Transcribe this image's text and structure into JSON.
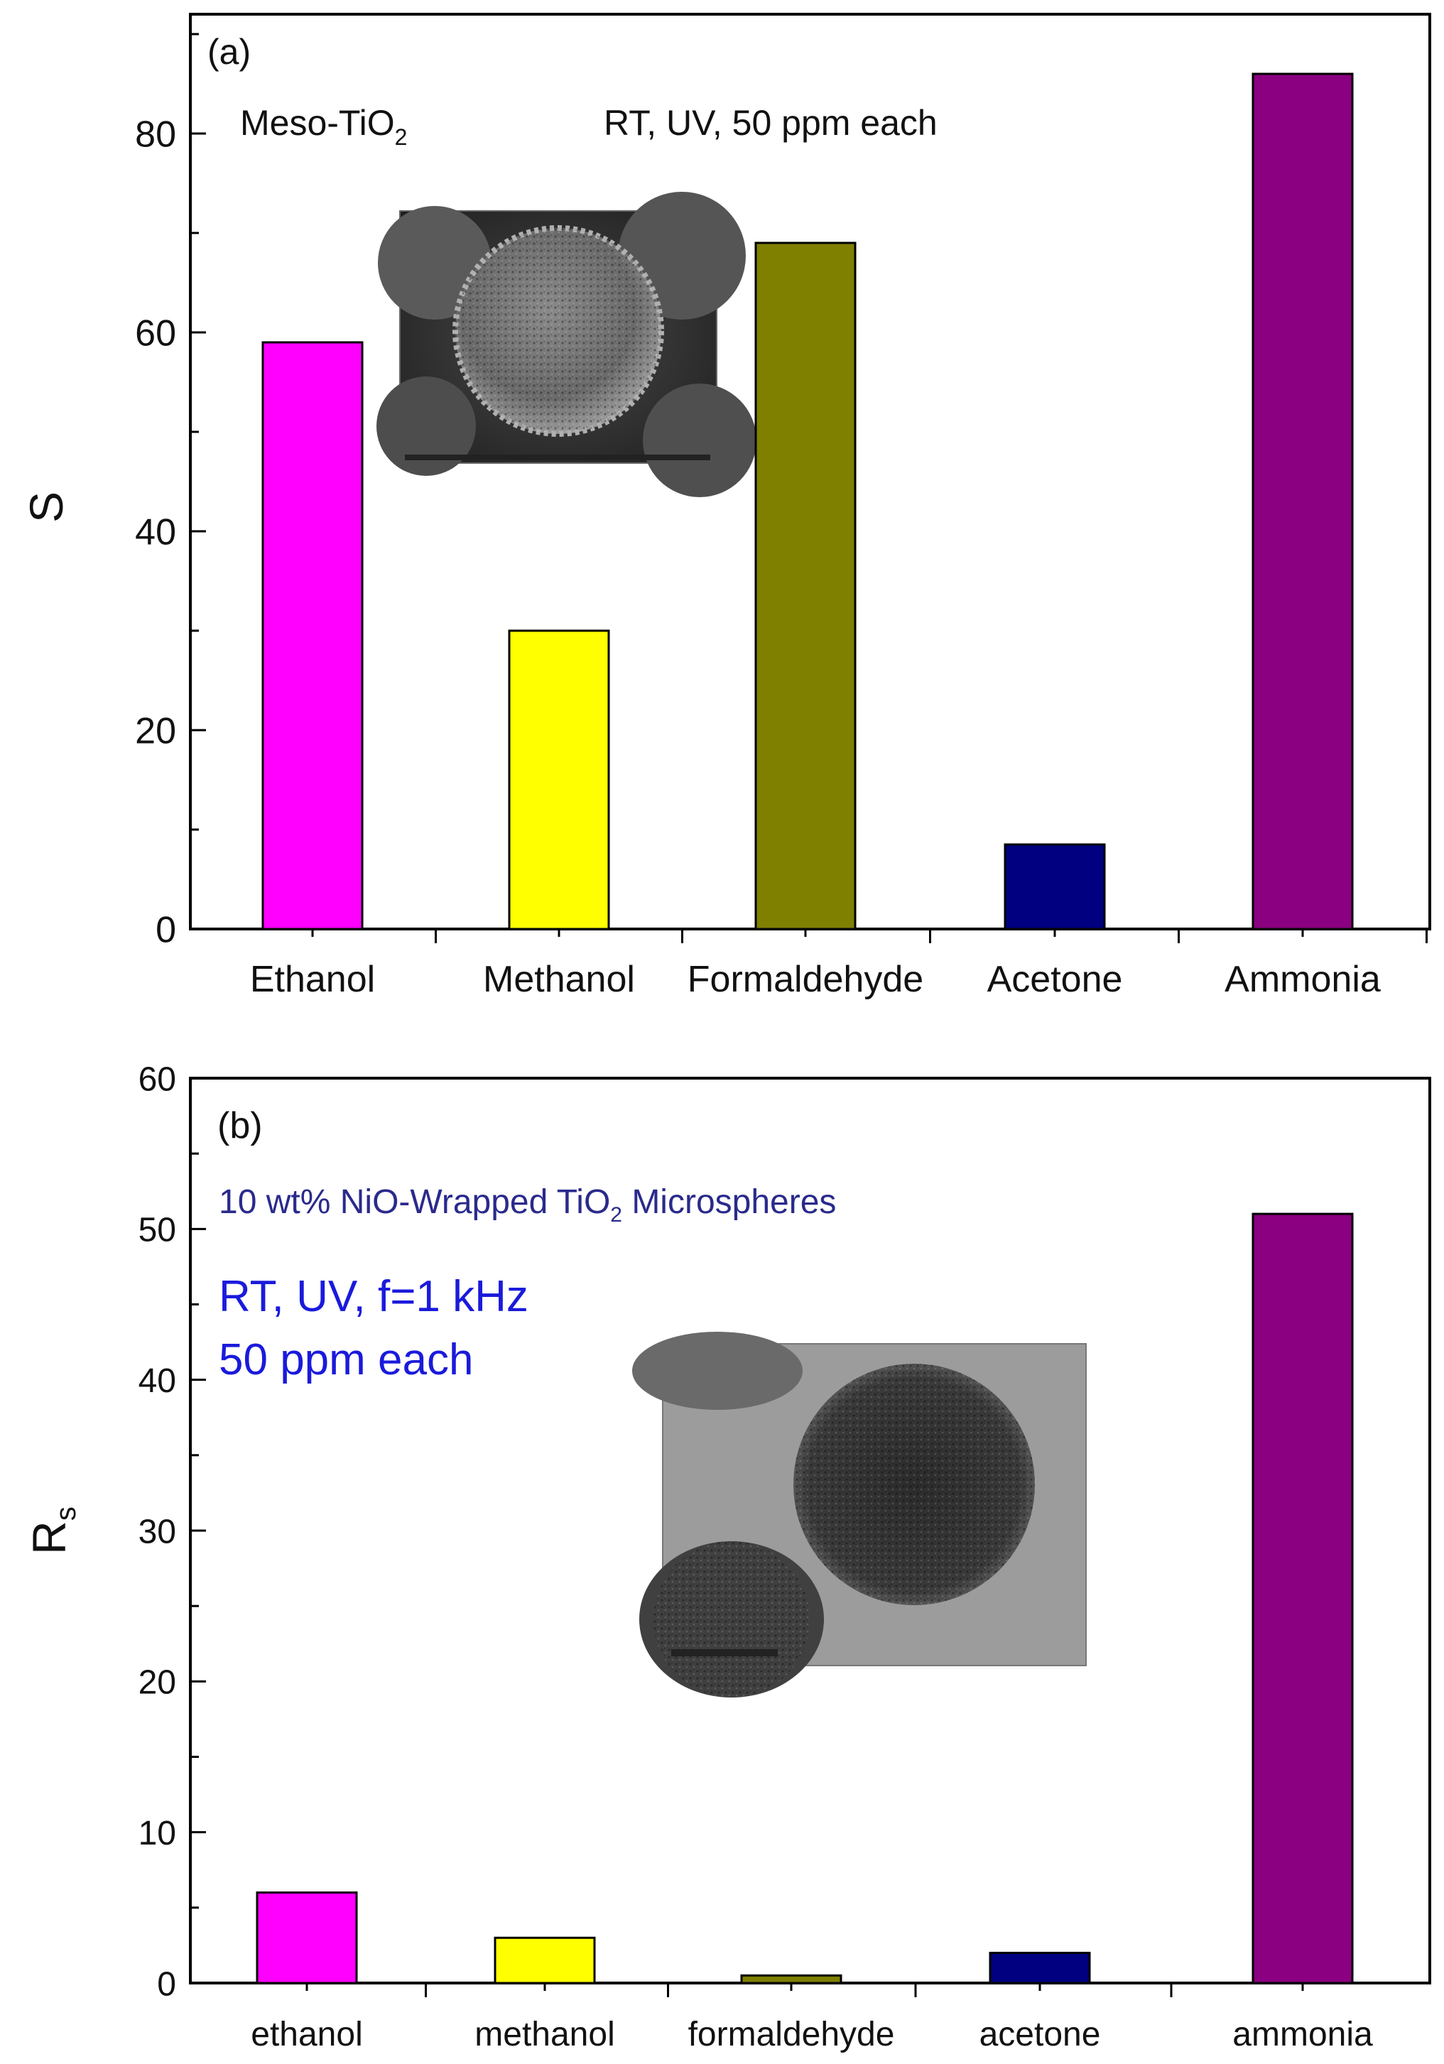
{
  "chart_data": [
    {
      "type": "bar",
      "panel_label": "(a)",
      "annotations": [
        {
          "text": "Meso-TiO",
          "subscript": "2"
        },
        {
          "text": "RT, UV, 50 ppm each",
          "subscript": ""
        }
      ],
      "ylabel": "S",
      "ylabel_subscript": "",
      "xlabel": "",
      "categories": [
        "Ethanol",
        "Methanol",
        "Formaldehyde",
        "Acetone",
        "Ammonia"
      ],
      "values": [
        59,
        30,
        69,
        8.5,
        86
      ],
      "colors": [
        "#ff00ff",
        "#ffff00",
        "#7f7f00",
        "#000080",
        "#8b0080"
      ],
      "ylim": [
        0,
        92
      ],
      "yticks": [
        0,
        20,
        40,
        60,
        80
      ],
      "ytick_labels": [
        "0",
        "20",
        "40",
        "60",
        "80"
      ],
      "minor_step": 10,
      "grid": false,
      "inset": "SEM micrograph of a mesoporous TiO2 microsphere"
    },
    {
      "type": "bar",
      "panel_label": "(b)",
      "annotations": [
        {
          "text": "10 wt% NiO-Wrapped TiO",
          "subscript": "2",
          "after": " Microspheres"
        },
        {
          "text": "RT, UV, f=1 kHz",
          "subscript": ""
        },
        {
          "text": "50 ppm each",
          "subscript": ""
        }
      ],
      "ylabel": "R",
      "ylabel_subscript": "s",
      "xlabel": "",
      "categories": [
        "ethanol",
        "methanol",
        "formaldehyde",
        "acetone",
        "ammonia"
      ],
      "values": [
        6,
        3,
        0.5,
        2,
        51
      ],
      "colors": [
        "#ff00ff",
        "#ffff00",
        "#7f7f00",
        "#000080",
        "#8b0080"
      ],
      "ylim": [
        0,
        60
      ],
      "yticks": [
        0,
        10,
        20,
        30,
        40,
        50,
        60
      ],
      "ytick_labels": [
        "0",
        "10",
        "20",
        "30",
        "40",
        "50",
        "60"
      ],
      "minor_step": 5,
      "grid": false,
      "inset": "TEM micrograph of a NiO-wrapped TiO2 microsphere"
    }
  ],
  "colors": {
    "annotation_a": "#111111",
    "annotation_b_line1": "#2a2a8c",
    "annotation_b_lines": "#1a1adc",
    "axis": "#000000"
  }
}
